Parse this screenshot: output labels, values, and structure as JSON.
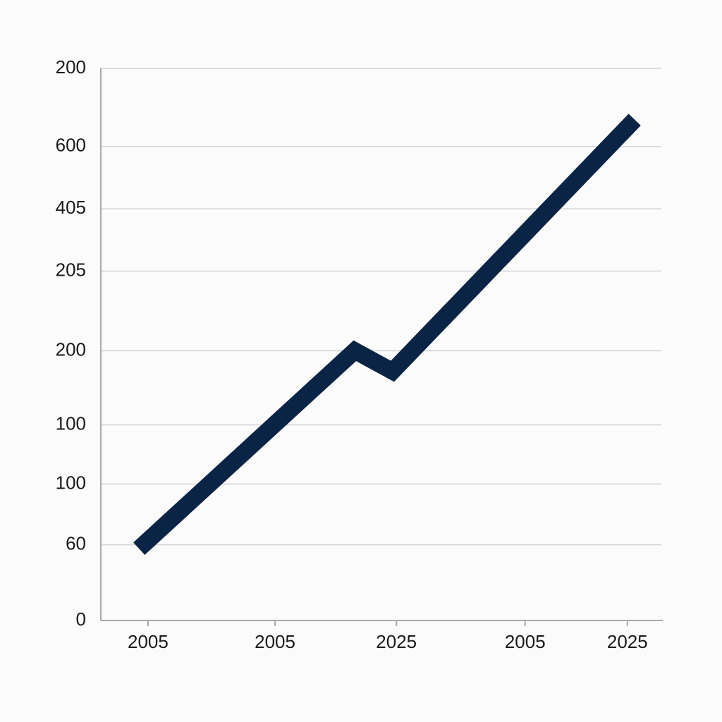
{
  "chart_data": {
    "type": "line",
    "x": [
      6.8,
      45.2,
      51.9,
      95
    ],
    "values": [
      91,
      342,
      316,
      635
    ],
    "color": "#0a2445",
    "xlim": [
      0,
      100
    ],
    "xticks": [
      {
        "value": 8.4,
        "label": "2005"
      },
      {
        "value": 31,
        "label": "2005"
      },
      {
        "value": 52.6,
        "label": "2025"
      },
      {
        "value": 75.5,
        "label": "2005"
      },
      {
        "value": 93.7,
        "label": "2025"
      }
    ],
    "ylim": [
      0,
      700
    ],
    "yticks": [
      0,
      {
        "value": 96,
        "label": "60"
      },
      {
        "value": 173,
        "label": "100"
      },
      {
        "value": 248,
        "label": "100"
      },
      {
        "value": 342,
        "label": "200"
      },
      {
        "value": 443,
        "label": "205"
      },
      {
        "value": 522,
        "label": "405"
      },
      {
        "value": 601,
        "label": "600"
      },
      {
        "value": 700,
        "label": "200"
      }
    ],
    "grid": true
  }
}
